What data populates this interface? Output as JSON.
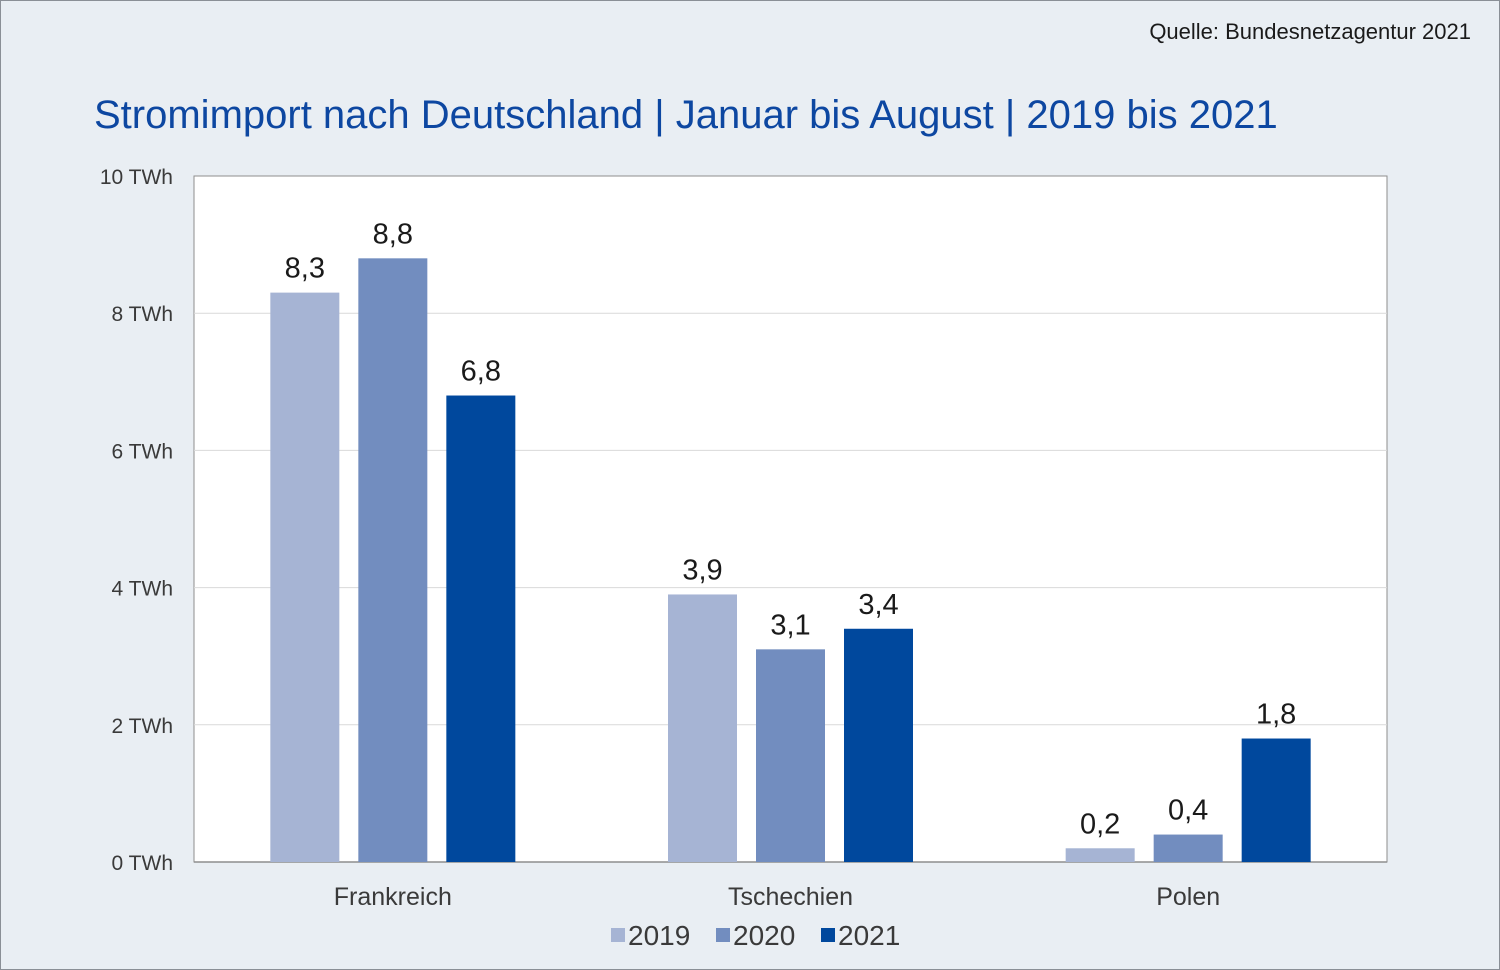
{
  "source": "Quelle: Bundesnetzagentur 2021",
  "chart_data": {
    "type": "bar",
    "title": "Stromimport nach Deutschland | Januar bis August | 2019 bis 2021",
    "xlabel": "",
    "ylabel": "",
    "categories": [
      "Frankreich",
      "Tschechien",
      "Polen"
    ],
    "series": [
      {
        "name": "2019",
        "color": "#a6b4d4",
        "values": [
          8.3,
          3.9,
          0.2
        ],
        "labels": [
          "8,3",
          "3,9",
          "0,2"
        ]
      },
      {
        "name": "2020",
        "color": "#728dbf",
        "values": [
          8.8,
          3.1,
          0.4
        ],
        "labels": [
          "8,8",
          "3,1",
          "0,4"
        ]
      },
      {
        "name": "2021",
        "color": "#00489d",
        "values": [
          6.8,
          3.4,
          1.8
        ],
        "labels": [
          "6,8",
          "3,4",
          "1,8"
        ]
      }
    ],
    "ylim": [
      0,
      10
    ],
    "yticks": [
      0,
      2,
      4,
      6,
      8,
      10
    ],
    "ytick_labels": [
      "0 TWh",
      "2 TWh",
      "4 TWh",
      "6 TWh",
      "8 TWh",
      "10 TWh"
    ],
    "grid": true,
    "legend_position": "bottom-center"
  }
}
